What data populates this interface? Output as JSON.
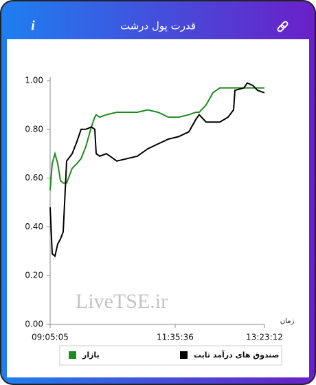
{
  "info_icon": "i",
  "chart_data": {
    "type": "line",
    "title": "قدرت پول درشت",
    "watermark": "LiveTSE.ir",
    "x_label": "زمان",
    "x": [
      "09:05:05",
      "09:07:34",
      "09:10:52",
      "09:14:11",
      "09:17:30",
      "09:20:48",
      "09:24:56",
      "09:31:33",
      "09:37:21",
      "09:42:19",
      "09:48:06",
      "09:54:43",
      "09:58:52",
      "10:00:31",
      "10:04:39",
      "10:12:55",
      "10:25:20",
      "10:37:45",
      "10:50:09",
      "11:02:34",
      "11:14:58",
      "11:27:23",
      "11:39:48",
      "11:52:12",
      "12:00:29",
      "12:04:37",
      "12:12:53",
      "12:21:10",
      "12:29:26",
      "12:39:22",
      "12:45:59",
      "12:47:38",
      "12:58:23",
      "13:02:32",
      "13:09:09",
      "13:14:56",
      "13:23:12"
    ],
    "xlim": [
      "09:05:05",
      "13:23:12"
    ],
    "xticks": [
      "09:05:05",
      "11:35:36",
      "13:23:12"
    ],
    "ylim": [
      0,
      1
    ],
    "yticks": [
      {
        "value": 0,
        "label": "0.00"
      },
      {
        "value": 0.2,
        "label": "0.20"
      },
      {
        "value": 0.4,
        "label": "0.40"
      },
      {
        "value": 0.6,
        "label": "0.60"
      },
      {
        "value": 0.8,
        "label": "0.80"
      },
      {
        "value": 1,
        "label": "1.00"
      }
    ],
    "series": [
      {
        "name": "بازار",
        "color": "#1e8a1e",
        "values": [
          0.55,
          0.66,
          0.7,
          0.66,
          0.59,
          0.58,
          0.58,
          0.64,
          0.66,
          0.68,
          0.73,
          0.81,
          0.85,
          0.86,
          0.85,
          0.86,
          0.87,
          0.87,
          0.87,
          0.88,
          0.87,
          0.85,
          0.85,
          0.86,
          0.87,
          0.87,
          0.9,
          0.95,
          0.97,
          0.97,
          0.97,
          0.97,
          0.97,
          0.97,
          0.97,
          0.97,
          0.97
        ]
      },
      {
        "name": "صندوق های درآمد ثابت",
        "color": "#000000",
        "values": [
          0.48,
          0.29,
          0.28,
          0.33,
          0.35,
          0.38,
          0.67,
          0.7,
          0.75,
          0.8,
          0.8,
          0.81,
          0.8,
          0.7,
          0.69,
          0.7,
          0.67,
          0.68,
          0.69,
          0.72,
          0.74,
          0.76,
          0.77,
          0.79,
          0.84,
          0.86,
          0.83,
          0.83,
          0.83,
          0.85,
          0.88,
          0.96,
          0.97,
          0.99,
          0.98,
          0.96,
          0.95
        ]
      }
    ]
  }
}
